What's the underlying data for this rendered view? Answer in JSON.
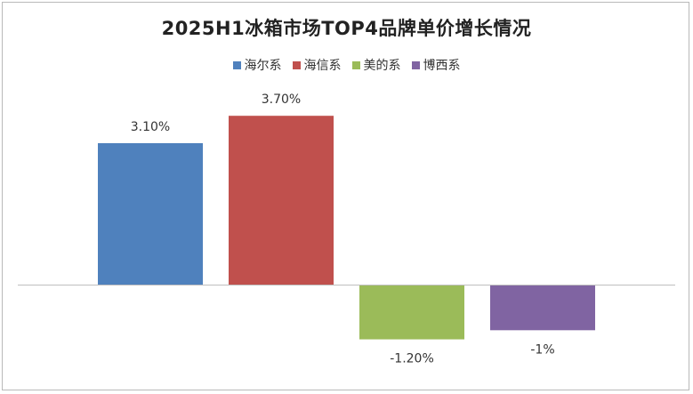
{
  "chart_data": {
    "type": "bar",
    "title": "2025H1冰箱市场TOP4品牌单价增长情况",
    "xlabel": "",
    "ylabel": "",
    "ylim": [
      -1.6,
      4.1
    ],
    "grid": false,
    "legend_position": "top",
    "unit": "%",
    "series": [
      {
        "name": "海尔系",
        "value": 3.1,
        "label": "3.10%",
        "color": "#4f81bd"
      },
      {
        "name": "海信系",
        "value": 3.7,
        "label": "3.70%",
        "color": "#c0504d"
      },
      {
        "name": "美的系",
        "value": -1.2,
        "label": "-1.20%",
        "color": "#9bbb59"
      },
      {
        "name": "博西系",
        "value": -1.0,
        "label": "-1%",
        "color": "#8064a2"
      }
    ]
  }
}
